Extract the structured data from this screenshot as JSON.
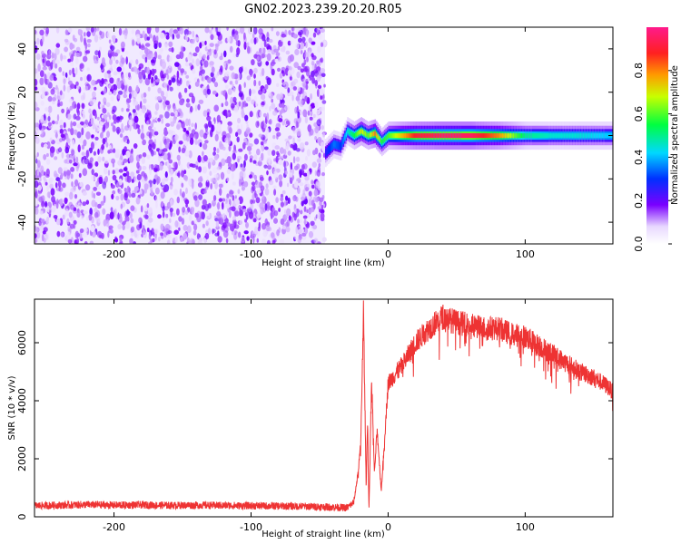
{
  "title": "GN02.2023.239.20.20.R05",
  "chart_data": [
    {
      "type": "heatmap",
      "title": "GN02.2023.239.20.20.R05",
      "xlabel": "Height of straight line (km)",
      "ylabel": "Frequency (Hz)",
      "xlim": [
        -258,
        164
      ],
      "ylim": [
        -50,
        50
      ],
      "x_ticks": [
        -200,
        -100,
        0,
        100
      ],
      "x_tick_labels": [
        "-200",
        "-100",
        "0",
        "100"
      ],
      "y_ticks": [
        -40,
        -20,
        0,
        20,
        40
      ],
      "y_tick_labels": [
        "-40",
        "-20",
        "0",
        "20",
        "40"
      ],
      "colorbar": {
        "label": "Normalized spectral amplitude",
        "range": [
          0,
          1
        ],
        "ticks": [
          0.0,
          0.2,
          0.4,
          0.6,
          0.8
        ],
        "tick_labels": [
          "0.0",
          "0.2",
          "0.4",
          "0.6",
          "0.8"
        ]
      },
      "noise_region": {
        "x_range": [
          -258,
          -46
        ],
        "amplitude": "0.0-0.2"
      },
      "signal_ridge": {
        "x": [
          -46,
          -40,
          -35,
          -30,
          -25,
          -20,
          -15,
          -10,
          -5,
          0,
          20,
          40,
          60,
          80,
          100,
          120,
          140,
          164
        ],
        "frequency_hz": [
          -8,
          -4,
          -5,
          2,
          0,
          2,
          0,
          1,
          -3,
          0,
          0,
          0,
          0,
          0,
          0,
          0,
          0,
          0
        ],
        "amplitude": [
          0.25,
          0.35,
          0.3,
          0.45,
          0.55,
          0.7,
          0.6,
          0.8,
          0.55,
          0.6,
          0.9,
          0.95,
          0.95,
          0.8,
          0.5,
          0.45,
          0.45,
          0.4
        ]
      }
    },
    {
      "type": "line",
      "xlabel": "Height of straight line (km)",
      "ylabel": "SNR (10 * v/v)",
      "xlim": [
        -258,
        164
      ],
      "ylim": [
        0,
        7500
      ],
      "x_ticks": [
        -200,
        -100,
        0,
        100
      ],
      "x_tick_labels": [
        "-200",
        "-100",
        "0",
        "100"
      ],
      "y_ticks": [
        0,
        2000,
        4000,
        6000
      ],
      "y_tick_labels": [
        "0",
        "2000",
        "4000",
        "6000"
      ],
      "series": [
        {
          "color": "#ee3333",
          "x": [
            -258,
            -240,
            -220,
            -200,
            -180,
            -160,
            -140,
            -120,
            -100,
            -80,
            -60,
            -40,
            -30,
            -25,
            -22,
            -20,
            -18,
            -16,
            -15,
            -14,
            -12,
            -10,
            -8,
            -5,
            0,
            5,
            10,
            20,
            30,
            40,
            50,
            60,
            70,
            80,
            90,
            100,
            110,
            120,
            130,
            140,
            150,
            160,
            164
          ],
          "y": [
            380,
            400,
            420,
            400,
            410,
            390,
            400,
            390,
            380,
            370,
            360,
            330,
            310,
            500,
            1500,
            2500,
            7100,
            1000,
            3500,
            200,
            4800,
            1500,
            3000,
            900,
            4600,
            4900,
            5200,
            6000,
            6500,
            6900,
            6700,
            6600,
            6500,
            6500,
            6300,
            6200,
            5900,
            5600,
            5300,
            5000,
            4800,
            4500,
            4300
          ]
        }
      ]
    }
  ]
}
